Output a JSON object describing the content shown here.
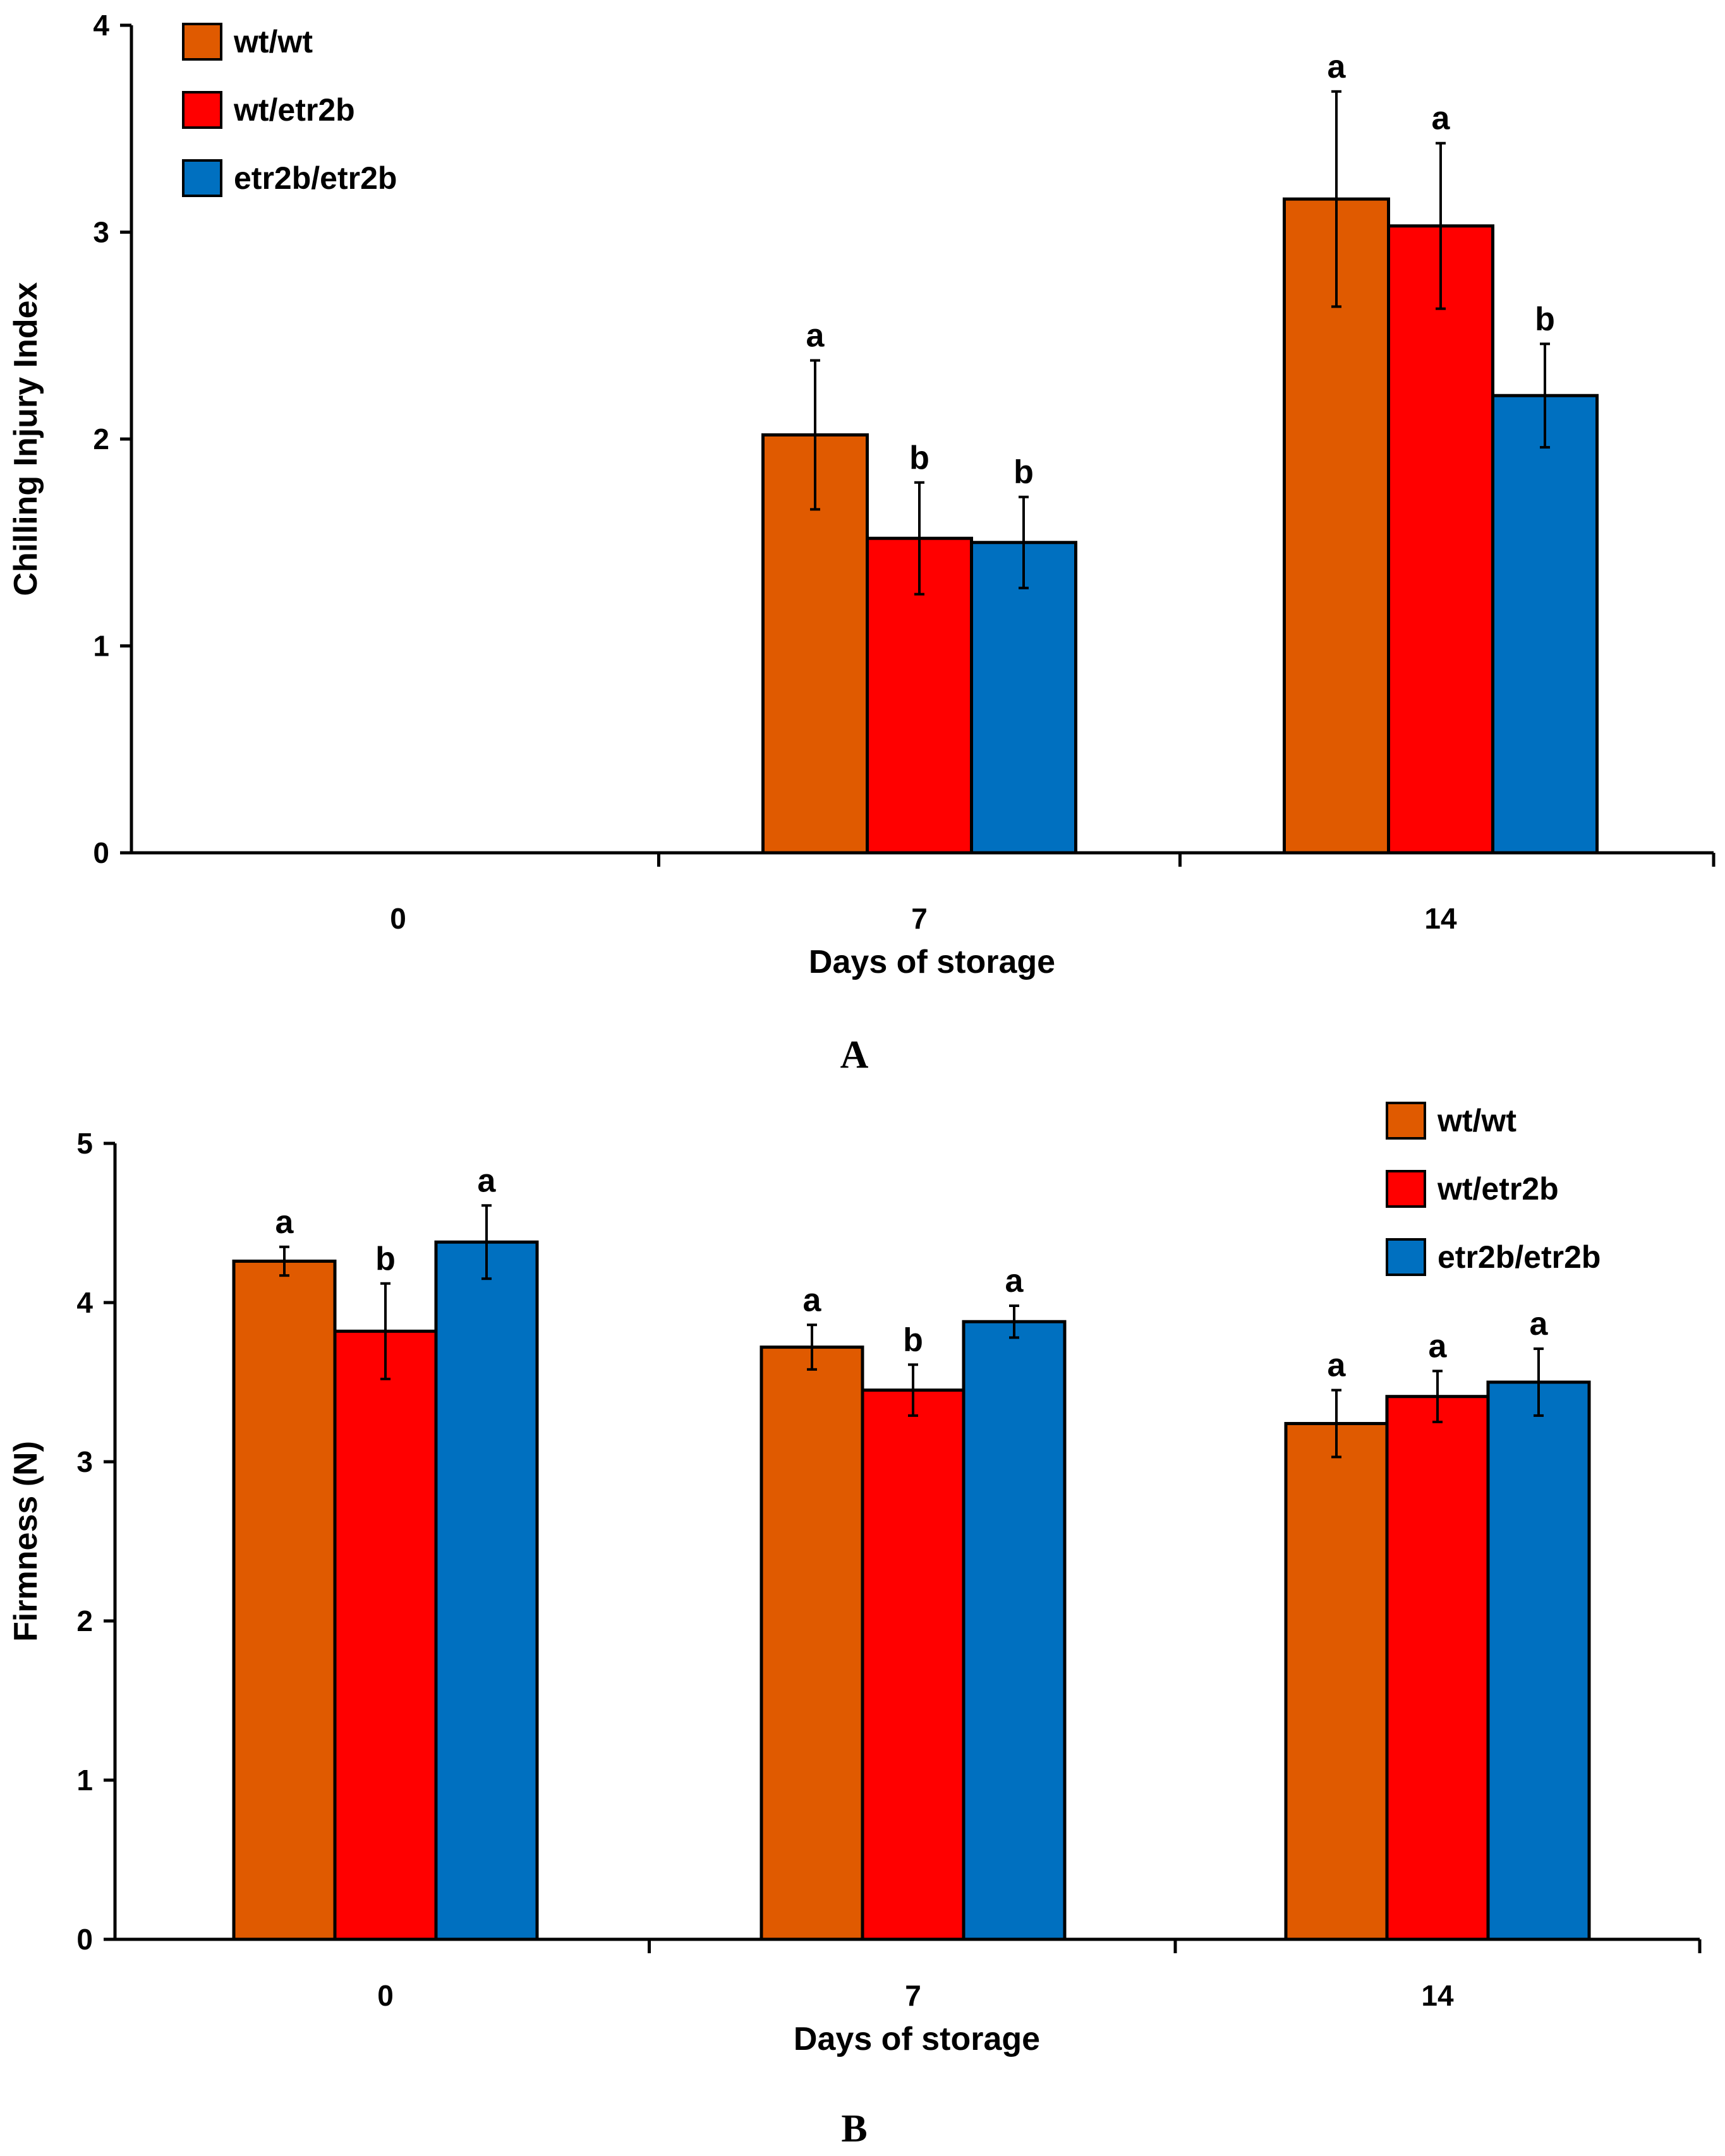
{
  "series_colors": {
    "wt/wt": "#e05a00",
    "wt/etr2b": "#ff0000",
    "etr2b/etr2b": "#0070c0"
  },
  "chart_data": [
    {
      "panel": "A",
      "type": "bar",
      "xlabel": "Days of storage",
      "ylabel": "Chilling Injury Index",
      "ylim": [
        0,
        4
      ],
      "yticks": [
        "0",
        "1",
        "2",
        "3",
        "4"
      ],
      "categories": [
        "0",
        "7",
        "14"
      ],
      "legend_position": "top-left",
      "series": [
        {
          "name": "wt/wt",
          "values": [
            0,
            2.02,
            3.16
          ],
          "errors": [
            0,
            0.36,
            0.52
          ],
          "labels": [
            "",
            "a",
            "a"
          ]
        },
        {
          "name": "wt/etr2b",
          "values": [
            0,
            1.52,
            3.03
          ],
          "errors": [
            0,
            0.27,
            0.4
          ],
          "labels": [
            "",
            "b",
            "a"
          ]
        },
        {
          "name": "etr2b/etr2b",
          "values": [
            0,
            1.5,
            2.21
          ],
          "errors": [
            0,
            0.22,
            0.25
          ],
          "labels": [
            "",
            "b",
            "b"
          ]
        }
      ]
    },
    {
      "panel": "B",
      "type": "bar",
      "xlabel": "Days of storage",
      "ylabel": "Firmness (N)",
      "ylim": [
        0,
        5
      ],
      "yticks": [
        "0",
        "1",
        "2",
        "3",
        "4",
        "5"
      ],
      "categories": [
        "0",
        "7",
        "14"
      ],
      "legend_position": "top-right",
      "series": [
        {
          "name": "wt/wt",
          "values": [
            4.26,
            3.72,
            3.24
          ],
          "errors": [
            0.09,
            0.14,
            0.21
          ],
          "labels": [
            "a",
            "a",
            "a"
          ]
        },
        {
          "name": "wt/etr2b",
          "values": [
            3.82,
            3.45,
            3.41
          ],
          "errors": [
            0.3,
            0.16,
            0.16
          ],
          "labels": [
            "b",
            "b",
            "a"
          ]
        },
        {
          "name": "etr2b/etr2b",
          "values": [
            4.38,
            3.88,
            3.5
          ],
          "errors": [
            0.23,
            0.1,
            0.21
          ],
          "labels": [
            "a",
            "a",
            "a"
          ]
        }
      ]
    }
  ]
}
